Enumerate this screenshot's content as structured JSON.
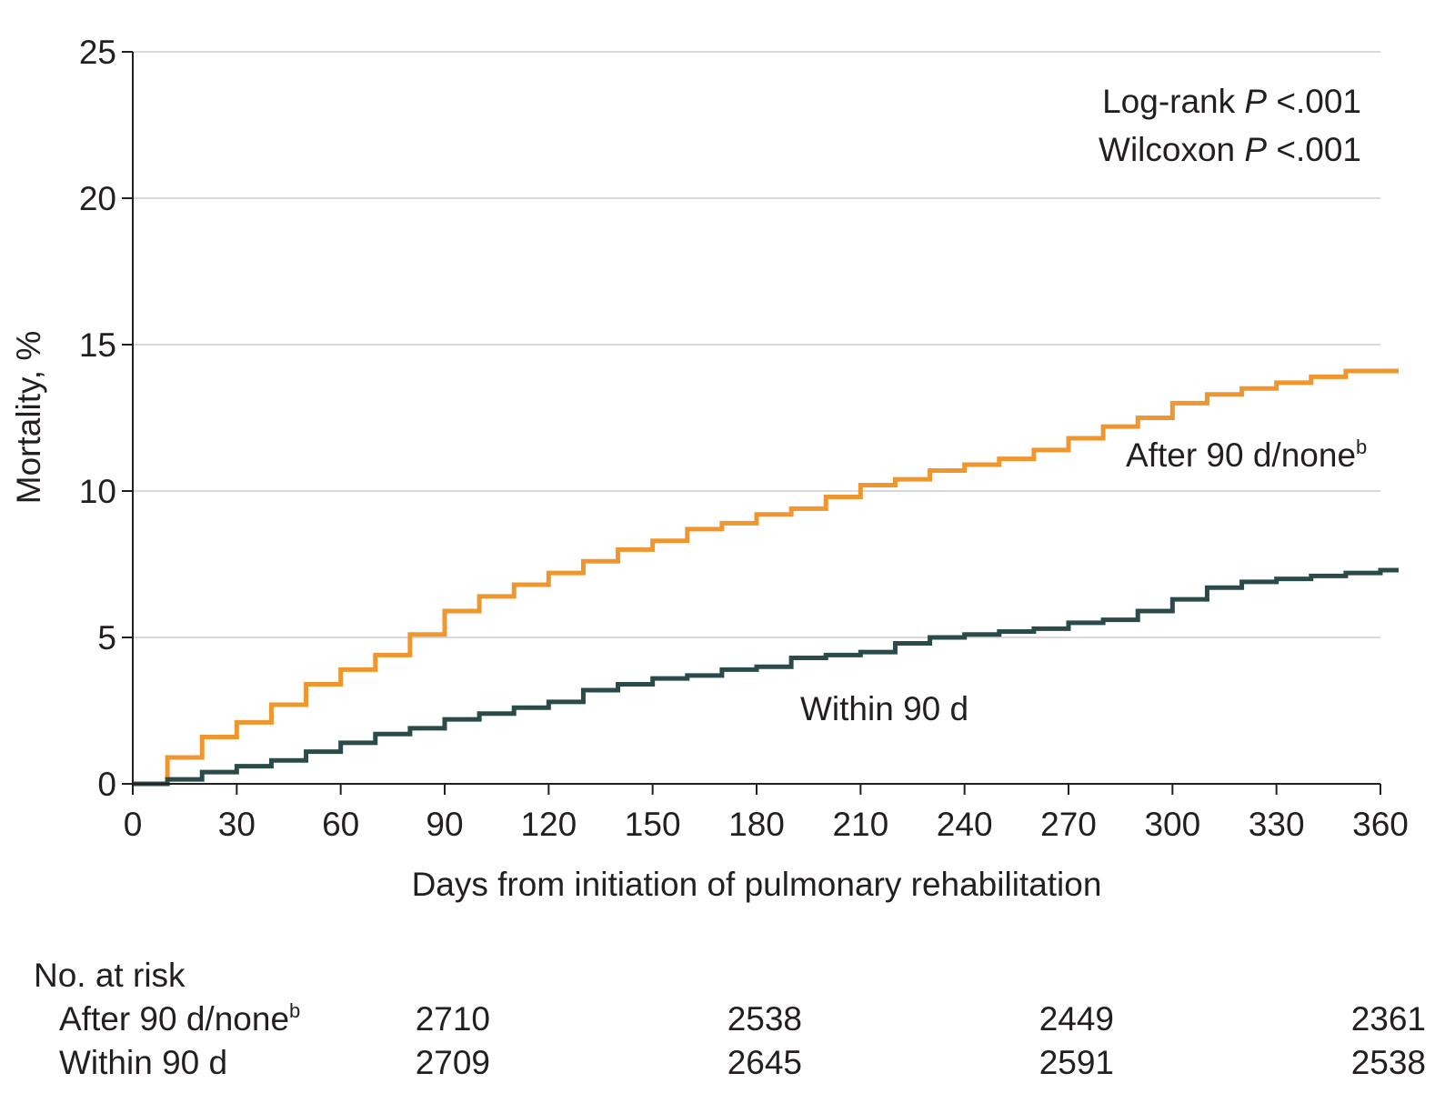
{
  "chart_data": {
    "type": "line",
    "step": true,
    "xlabel": "Days from initiation of pulmonary rehabilitation",
    "ylabel": "Mortality, %",
    "xlim": [
      0,
      360
    ],
    "ylim": [
      0,
      25
    ],
    "x_ticks": [
      "0",
      "30",
      "60",
      "90",
      "120",
      "150",
      "180",
      "210",
      "240",
      "270",
      "300",
      "330",
      "360"
    ],
    "y_ticks": [
      "0",
      "5",
      "10",
      "15",
      "20",
      "25"
    ],
    "grid": true,
    "annotations": {
      "logrank": {
        "prefix": "Log-rank ",
        "p": "P",
        "suffix": " <.001"
      },
      "wilcoxon": {
        "prefix": "Wilcoxon ",
        "p": "P",
        "suffix": " <.001"
      }
    },
    "series": [
      {
        "name": "After 90 d/none",
        "name_sup": "b",
        "color": "#f0962f",
        "x": [
          0,
          10,
          20,
          30,
          40,
          50,
          60,
          70,
          80,
          90,
          100,
          110,
          120,
          130,
          140,
          150,
          160,
          170,
          180,
          190,
          200,
          210,
          220,
          230,
          240,
          250,
          260,
          270,
          280,
          290,
          300,
          310,
          320,
          330,
          340,
          350,
          360
        ],
        "y": [
          0,
          0.9,
          1.6,
          2.1,
          2.7,
          3.4,
          3.9,
          4.4,
          5.1,
          5.9,
          6.4,
          6.8,
          7.2,
          7.6,
          8.0,
          8.3,
          8.7,
          8.9,
          9.2,
          9.4,
          9.8,
          10.2,
          10.4,
          10.7,
          10.9,
          11.1,
          11.4,
          11.8,
          12.2,
          12.5,
          13.0,
          13.3,
          13.5,
          13.7,
          13.9,
          14.1,
          14.1
        ]
      },
      {
        "name": "Within 90 d",
        "color": "#2a4b49",
        "x": [
          0,
          10,
          20,
          30,
          40,
          50,
          60,
          70,
          80,
          90,
          100,
          110,
          120,
          130,
          140,
          150,
          160,
          170,
          180,
          190,
          200,
          210,
          220,
          230,
          240,
          250,
          260,
          270,
          280,
          290,
          300,
          310,
          320,
          330,
          340,
          350,
          360
        ],
        "y": [
          0,
          0.15,
          0.4,
          0.6,
          0.8,
          1.1,
          1.4,
          1.7,
          1.9,
          2.2,
          2.4,
          2.6,
          2.8,
          3.2,
          3.4,
          3.6,
          3.7,
          3.9,
          4.0,
          4.3,
          4.4,
          4.5,
          4.8,
          5.0,
          5.1,
          5.2,
          5.3,
          5.5,
          5.6,
          5.9,
          6.3,
          6.7,
          6.9,
          7.0,
          7.1,
          7.2,
          7.3
        ]
      }
    ],
    "risk_table": {
      "title": "No. at risk",
      "rows": [
        {
          "label": "After 90 d/none",
          "label_sup": "b",
          "values": [
            "2710",
            "2538",
            "2449",
            "2361"
          ]
        },
        {
          "label": "Within 90 d",
          "values": [
            "2709",
            "2645",
            "2591",
            "2538"
          ]
        }
      ]
    }
  }
}
